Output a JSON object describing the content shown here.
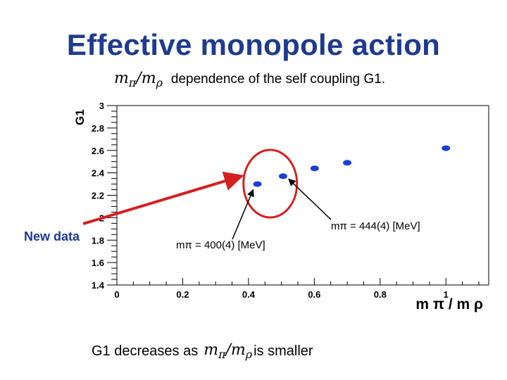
{
  "slide": {
    "title": "Effective monopole action",
    "subtitle_text": "dependence of the self coupling G1.",
    "bottom_left": "G1 decreases as",
    "bottom_right": "is smaller",
    "new_data_label": "New data"
  },
  "math": {
    "ratio_num": "m",
    "ratio_num_sub": "π",
    "ratio_sep": "/",
    "ratio_den": "m",
    "ratio_den_sub": "ρ"
  },
  "chart_data": {
    "type": "scatter",
    "title": "",
    "ylabel": "G1",
    "xlabel": "m π / m ρ",
    "xlim": [
      0,
      1.13
    ],
    "ylim": [
      1.4,
      3.0
    ],
    "x_ticks": [
      0,
      0.2,
      0.4,
      0.6,
      0.8,
      1
    ],
    "x_tick_labels": [
      "0",
      "0.2",
      "0.4",
      "0.6",
      "0.8",
      "1"
    ],
    "y_ticks": [
      1.4,
      1.6,
      1.8,
      2.0,
      2.2,
      2.4,
      2.6,
      2.8,
      3.0
    ],
    "y_tick_labels": [
      "1.4",
      "1.6",
      "1.8",
      "2",
      "2.2",
      "2.4",
      "2.6",
      "2.8",
      "3"
    ],
    "grid": false,
    "series": [
      {
        "name": "G1",
        "color": "#1a3fd6",
        "points": [
          {
            "x": 0.427,
            "y": 2.3,
            "new": true
          },
          {
            "x": 0.505,
            "y": 2.37,
            "new": true
          },
          {
            "x": 0.601,
            "y": 2.44
          },
          {
            "x": 0.7,
            "y": 2.49
          },
          {
            "x": 1.0,
            "y": 2.62
          }
        ]
      }
    ],
    "annotations": [
      {
        "text": "mπ = 400(4) [MeV]",
        "target_x": 0.427,
        "target_y": 2.3
      },
      {
        "text": "mπ = 444(4) [MeV]",
        "target_x": 0.505,
        "target_y": 2.37
      }
    ],
    "highlight": {
      "label": "New data",
      "color": "#d61f1f"
    }
  }
}
